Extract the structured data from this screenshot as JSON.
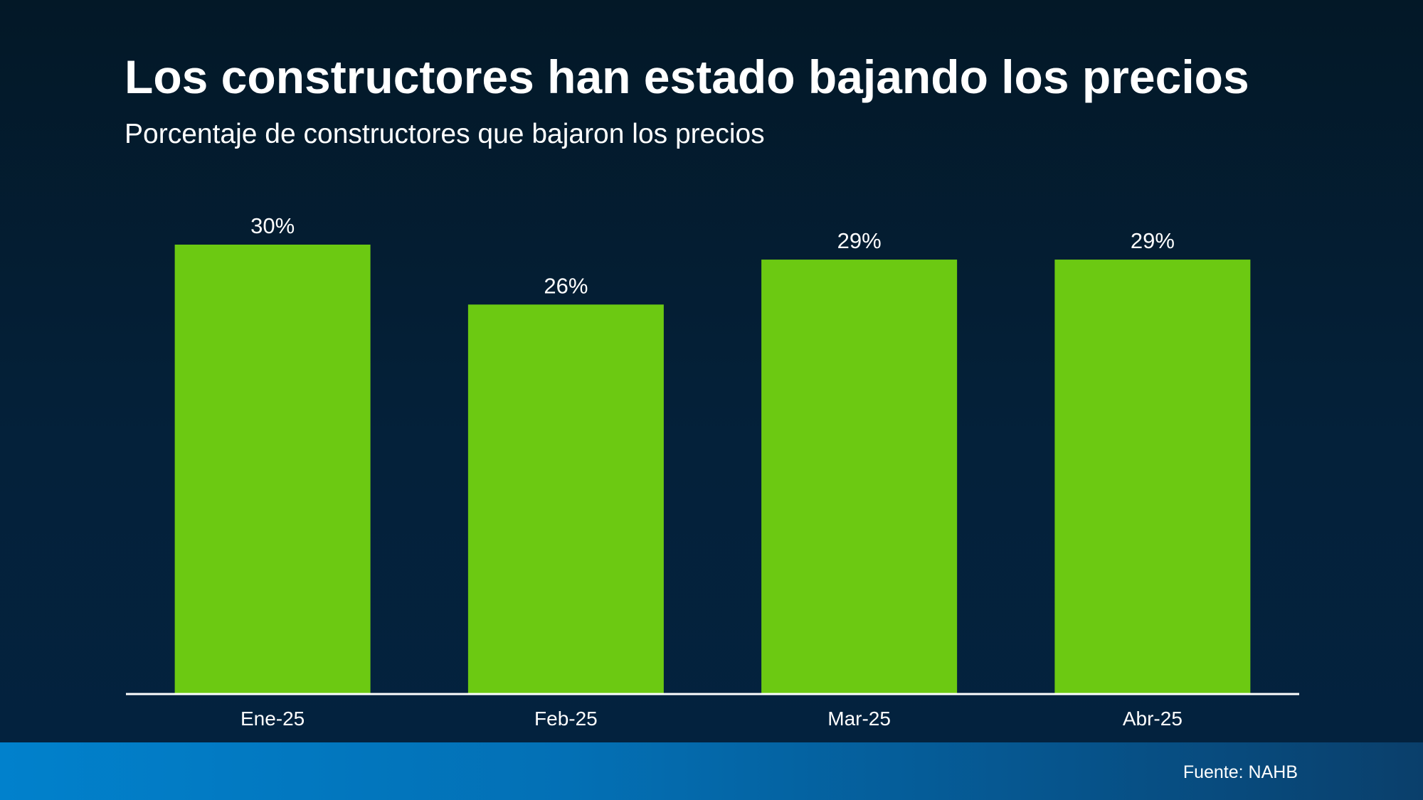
{
  "chart_data": {
    "type": "bar",
    "title": "Los constructores han estado bajando los precios",
    "subtitle": "Porcentaje de constructores que bajaron los precios",
    "categories": [
      "Ene-25",
      "Feb-25",
      "Mar-25",
      "Abr-25"
    ],
    "values": [
      30,
      26,
      29,
      29
    ],
    "value_labels": [
      "30%",
      "26%",
      "29%",
      "29%"
    ],
    "ylim": [
      0,
      30
    ],
    "grid": false,
    "legend": "none",
    "bar_color": "#6cc912",
    "source": "Fuente: NAHB"
  }
}
